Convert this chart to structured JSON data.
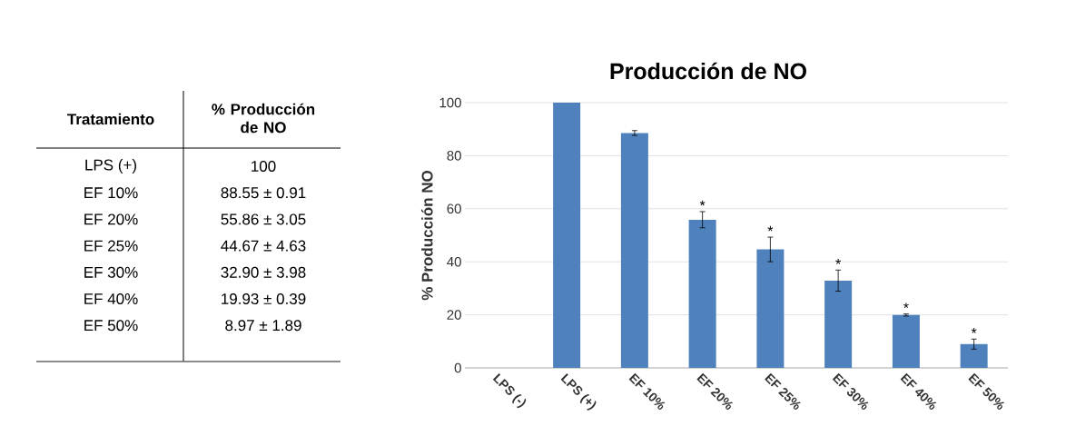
{
  "chart_data": [
    {
      "type": "other",
      "xlabel": "Tratamiento",
      "ylabel": "% Producción de NO",
      "categories": [
        "LPS (+)",
        "EF 10%",
        "EF 20%",
        "EF 25%",
        "EF 30%",
        "EF 40%",
        "EF 50%"
      ],
      "value_labels": [
        "100",
        "88.55 ± 0.91",
        "55.86 ± 3.05",
        "44.67 ± 4.63",
        "32.90 ± 3.98",
        "19.93 ± 0.39",
        "8.97 ± 1.89"
      ]
    },
    {
      "type": "bar",
      "title": "Producción de NO",
      "ylabel": "% Producción NO",
      "categories": [
        "LPS (-)",
        "LPS (+)",
        "EF 10%",
        "EF 20%",
        "EF 25%",
        "EF 30%",
        "EF 40%",
        "EF 50%"
      ],
      "values": [
        0,
        100,
        88.55,
        55.86,
        44.67,
        32.9,
        19.93,
        8.97
      ],
      "errors": [
        null,
        null,
        0.91,
        3.05,
        4.63,
        3.98,
        0.39,
        1.89
      ],
      "color": "#4f81bd",
      "ylim": [
        0,
        100
      ],
      "yticks": [
        0,
        20,
        40,
        60,
        80,
        100
      ],
      "grid": "y",
      "annotations": [
        {
          "text": "*",
          "x": "EF 20%",
          "y": 58.91
        },
        {
          "text": "*",
          "x": "EF 25%",
          "y": 49.3
        },
        {
          "text": "*",
          "x": "EF 30%",
          "y": 36.88
        },
        {
          "text": "*",
          "x": "EF 40%",
          "y": 20.32
        },
        {
          "text": "*",
          "x": "EF 50%",
          "y": 10.86
        }
      ]
    }
  ]
}
